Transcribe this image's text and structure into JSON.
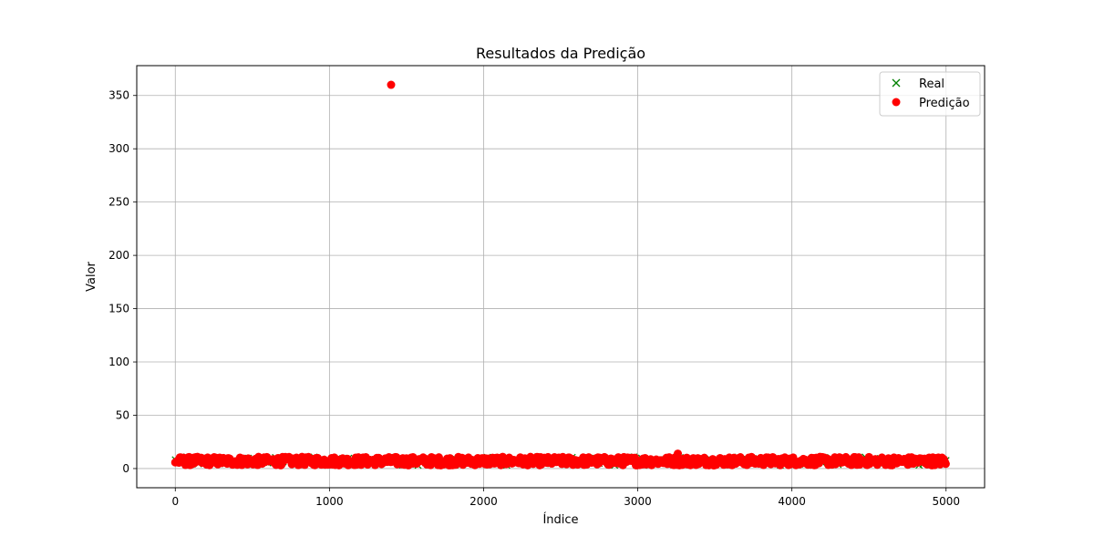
{
  "chart_data": {
    "type": "scatter",
    "title": "Resultados da Predição",
    "xlabel": "Índice",
    "ylabel": "Valor",
    "xlim": [
      -250,
      5250
    ],
    "ylim": [
      -18,
      378
    ],
    "xticks": [
      0,
      1000,
      2000,
      3000,
      4000,
      5000
    ],
    "yticks": [
      0,
      50,
      100,
      150,
      200,
      250,
      300,
      350
    ],
    "grid": true,
    "legend_position": "top-right",
    "x_range": [
      0,
      5000
    ],
    "band": {
      "y_min": 3,
      "y_max": 11
    },
    "series": [
      {
        "name": "Real",
        "marker": "x",
        "color": "#008000",
        "typical_y": 7
      },
      {
        "name": "Predição",
        "marker": "o",
        "color": "#ff0000",
        "typical_y": 7,
        "notable_points": [
          {
            "x": 1400,
            "y": 360
          },
          {
            "x": 3260,
            "y": 14
          }
        ]
      }
    ]
  }
}
